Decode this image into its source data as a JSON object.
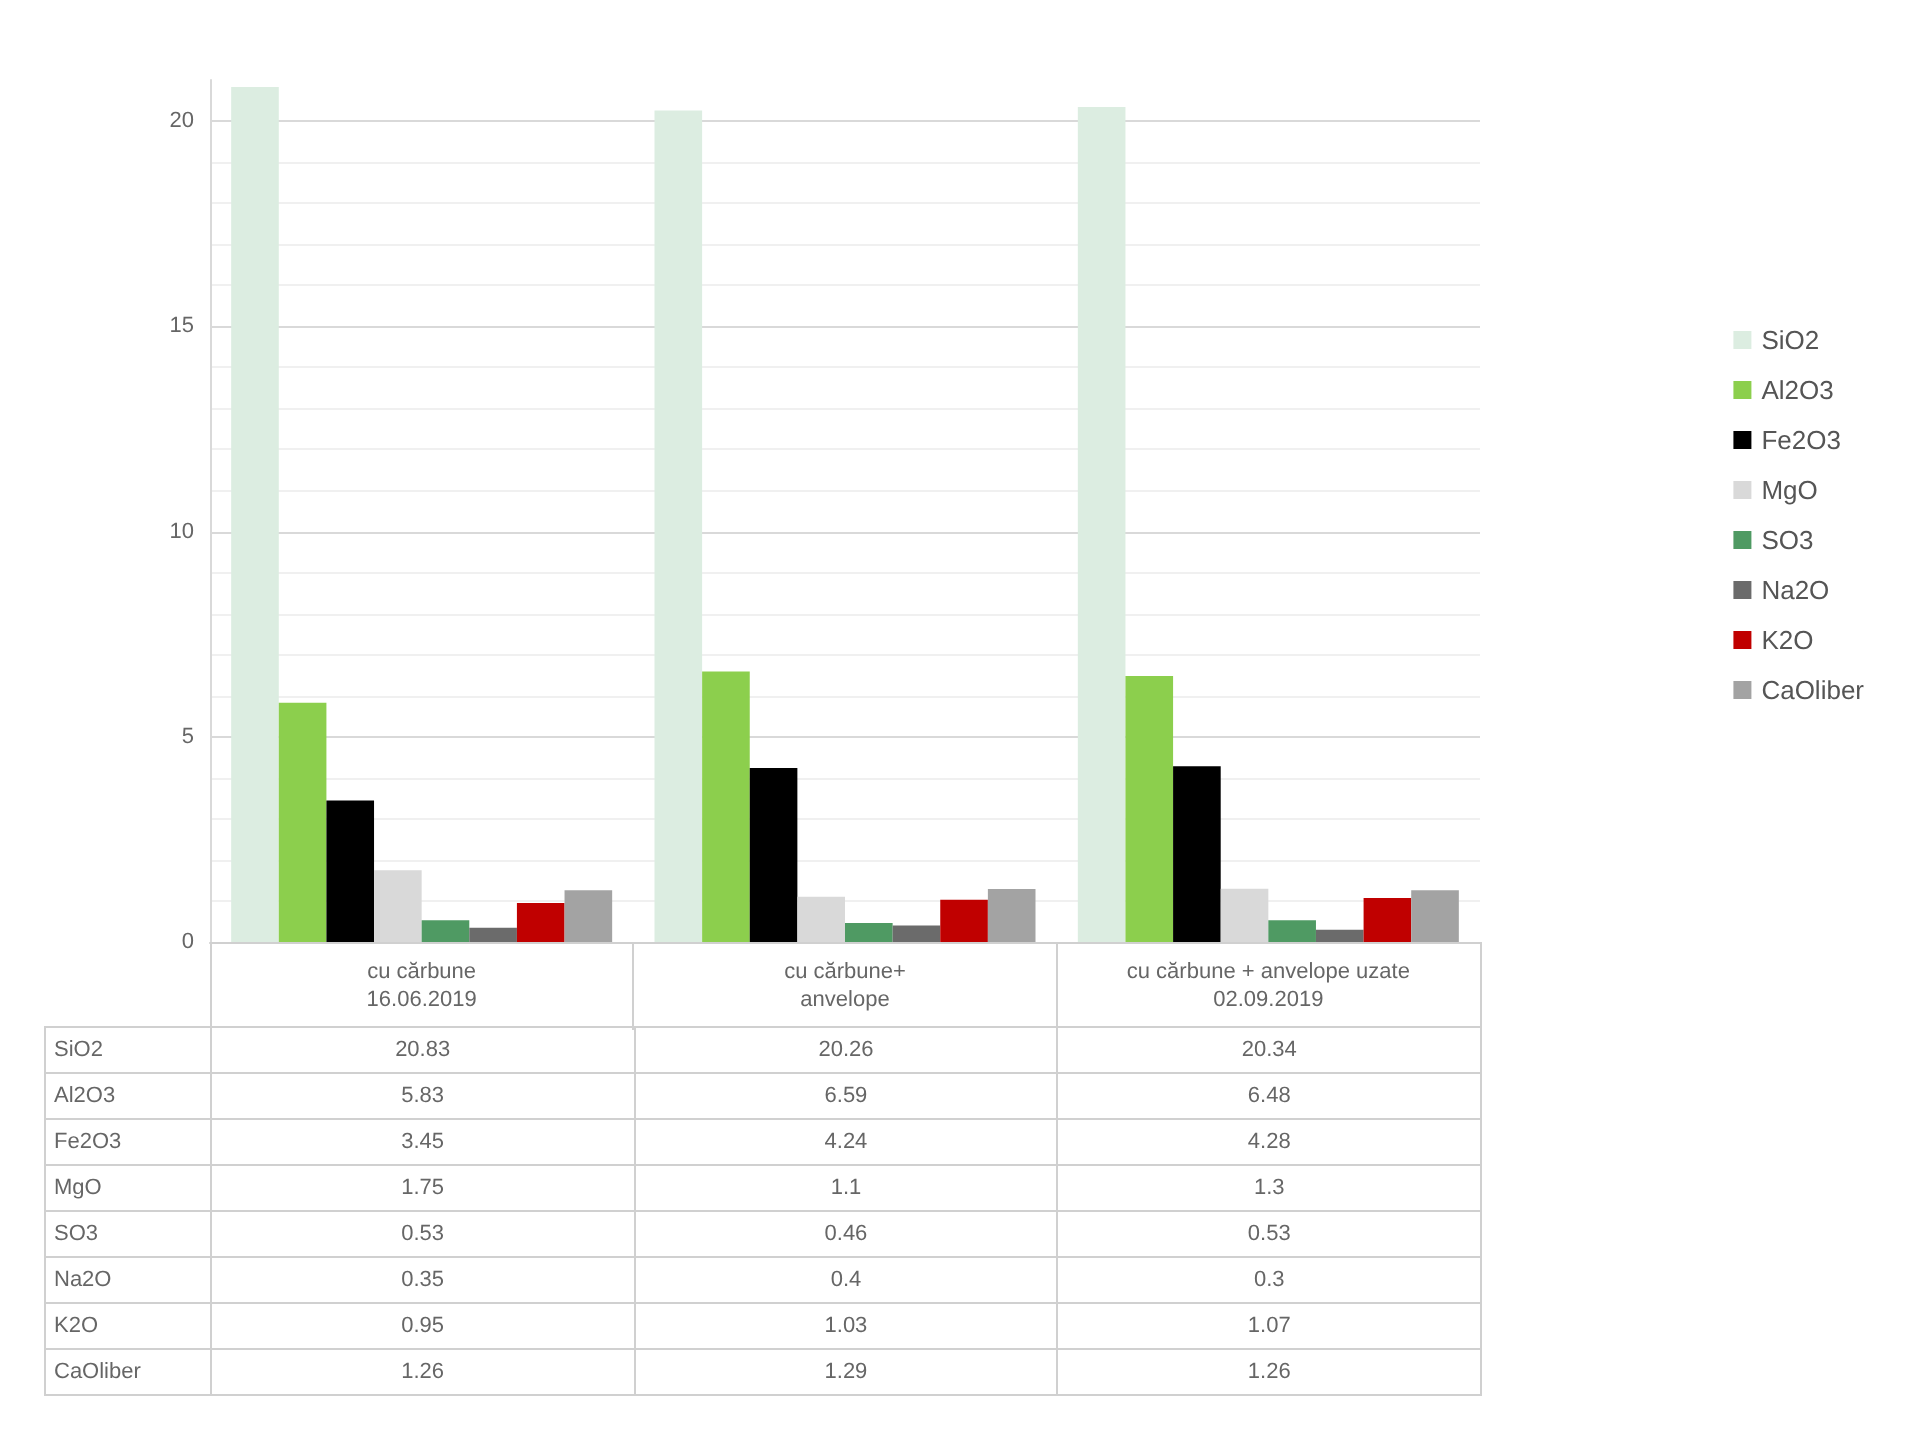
{
  "chart_data": {
    "type": "bar",
    "categories": [
      "cu cărbune\n16.06.2019",
      "cu cărbune+\nanvelope",
      "cu cărbune + anvelope uzate\n02.09.2019"
    ],
    "series": [
      {
        "name": "SiO2",
        "color": "#dcede1",
        "values": [
          20.83,
          20.26,
          20.34
        ]
      },
      {
        "name": "Al2O3",
        "color": "#8ccf4d",
        "values": [
          5.83,
          6.59,
          6.48
        ]
      },
      {
        "name": "Fe2O3",
        "color": "#000000",
        "values": [
          3.45,
          4.24,
          4.28
        ]
      },
      {
        "name": "MgO",
        "color": "#d9d9d9",
        "values": [
          1.75,
          1.1,
          1.3
        ]
      },
      {
        "name": "SO3",
        "color": "#4f9a63",
        "values": [
          0.53,
          0.46,
          0.53
        ]
      },
      {
        "name": "Na2O",
        "color": "#6b6b6b",
        "values": [
          0.35,
          0.4,
          0.3
        ]
      },
      {
        "name": "K2O",
        "color": "#c00000",
        "values": [
          0.95,
          1.03,
          1.07
        ]
      },
      {
        "name": "CaOliber",
        "color": "#a3a3a3",
        "values": [
          1.26,
          1.29,
          1.26
        ]
      }
    ],
    "ylim": [
      0,
      21
    ],
    "yticks": [
      0,
      5,
      10,
      15,
      20
    ],
    "grid": true,
    "legend": "right",
    "data_labels": true
  }
}
